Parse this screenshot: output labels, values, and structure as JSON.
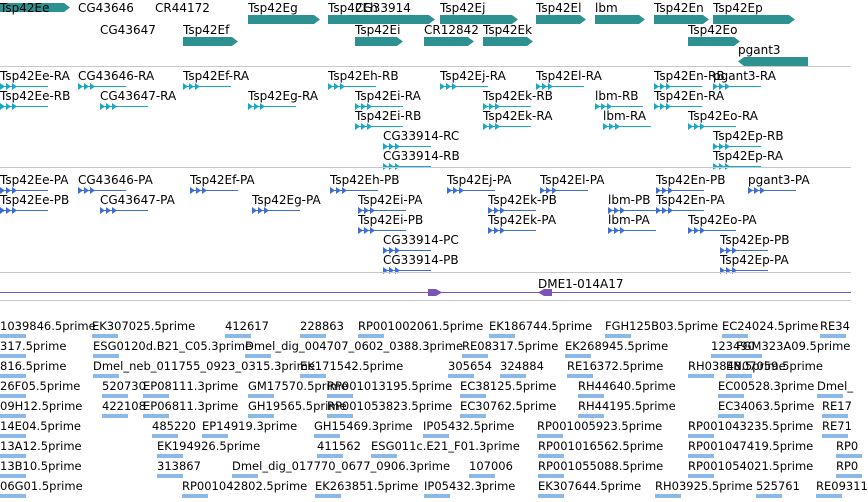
{
  "colors": {
    "gene": "#2e9191",
    "rna": "#17a9c9",
    "protein": "#3c6fd6",
    "clone": "#7b55b5",
    "est": "#8cb8e8",
    "separator": "#c8c8c8"
  },
  "tracks": {
    "genes": [
      "Tsp42Ee",
      "CG43646",
      "CR44172",
      "Tsp42Eg",
      "Tsp42Eh",
      "CG33914",
      "Tsp42Ej",
      "Tsp42El",
      "lbm",
      "Tsp42En",
      "Tsp42Ep",
      "CG43647",
      "Tsp42Ef",
      "Tsp42Ei",
      "CR12842",
      "Tsp42Ek",
      "Tsp42Eo",
      "pgant3"
    ],
    "rnas": [
      "Tsp42Ee-RA",
      "CG43646-RA",
      "Tsp42Ef-RA",
      "Tsp42Eh-RB",
      "Tsp42Ej-RA",
      "Tsp42El-RA",
      "Tsp42En-RB",
      "pgant3-RA",
      "Tsp42Ee-RB",
      "CG43647-RA",
      "Tsp42Eg-RA",
      "Tsp42Ei-RA",
      "Tsp42Ek-RB",
      "lbm-RB",
      "Tsp42En-RA",
      "Tsp42Ei-RB",
      "Tsp42Ek-RA",
      "lbm-RA",
      "Tsp42Eo-RA",
      "CG33914-RC",
      "Tsp42Ep-RB",
      "CG33914-RB",
      "Tsp42Ep-RA"
    ],
    "proteins": [
      "Tsp42Ee-PA",
      "CG43646-PA",
      "Tsp42Ef-PA",
      "Tsp42Eh-PB",
      "Tsp42Ej-PA",
      "Tsp42El-PA",
      "Tsp42En-PB",
      "pgant3-PA",
      "Tsp42Ee-PB",
      "CG43647-PA",
      "Tsp42Eg-PA",
      "Tsp42Ei-PA",
      "Tsp42Ek-PB",
      "lbm-PB",
      "Tsp42En-PA",
      "Tsp42Ei-PB",
      "Tsp42Ek-PA",
      "lbm-PA",
      "Tsp42Eo-PA",
      "CG33914-PC",
      "Tsp42Ep-PB",
      "CG33914-PB",
      "Tsp42Ep-PA"
    ],
    "clones": [
      "DME1-014A17"
    ],
    "ests": [
      [
        "1039846.5prime",
        "EK307025.5prime",
        "412617",
        "228863",
        "RP001002061.5prime",
        "EK186744.5prime",
        "FGH125B03.5prime",
        "EC24024.5prime",
        "RE34"
      ],
      [
        "317.5prime",
        "ESG0120d.B21_C05.3prime",
        "Dmel_dig_004707_0602_0388.3prime",
        "RE08317.5prime",
        "EK268945.5prime",
        "123490",
        "FGM323A09.5prime"
      ],
      [
        "816.5prime",
        "Dmel_neb_011755_0923_0315.3prime",
        "EK171542.5prime",
        "305654",
        "324884",
        "RE16372.5prime",
        "RH03848.5prime",
        "EN07059.5prime"
      ],
      [
        "26F05.5prime",
        "520730",
        "EP08111.3prime",
        "GM17570.5prime",
        "RP001013195.5prime",
        "EC38125.5prime",
        "RH44640.5prime",
        "EC00528.3prime",
        "Dmel_"
      ],
      [
        "09H12.5prime",
        "422108",
        "EP06811.3prime",
        "GH19565.5prime",
        "RP001053823.5prime",
        "EC30762.5prime",
        "RH44195.5prime",
        "EC34063.5prime",
        "RE17"
      ],
      [
        "14E04.5prime",
        "485220",
        "EP14919.3prime",
        "GH15469.3prime",
        "IP05432.5prime",
        "RP001005923.5prime",
        "RP001043235.5prime",
        "RE71"
      ],
      [
        "13A12.5prime",
        "EK194926.5prime",
        "411562",
        "ESG011c.E21_F01.3prime",
        "RP001016562.5prime",
        "RP001047419.5prime",
        "RP0"
      ],
      [
        "13B10.5prime",
        "313867",
        "Dmel_dig_017770_0677_0906.3prime",
        "107006",
        "RP001055088.5prime",
        "RP001054021.5prime",
        "RP0"
      ],
      [
        "06G01.5prime",
        "RP001042802.5prime",
        "EK263851.5prime",
        "IP05432.3prime",
        "EK307644.5prime",
        "RH03925.5prime",
        "525761",
        "RE09311"
      ]
    ]
  }
}
